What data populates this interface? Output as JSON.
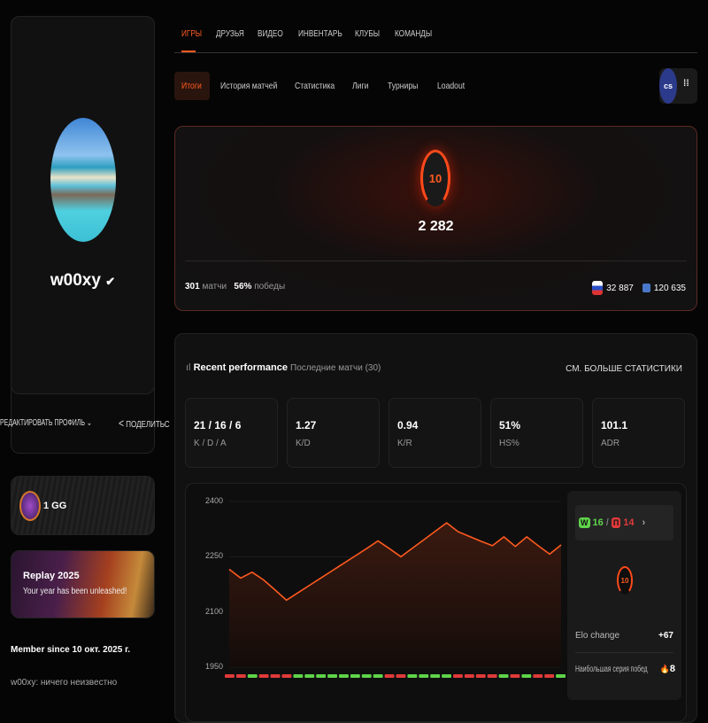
{
  "profile": {
    "username": "w00xy",
    "edit_label": "РЕДАКТИРОВАТЬ ПРОФИЛЬ",
    "share_label": "ПОДЕЛИТЬС",
    "member_since": "Member since 10 окт. 2025 г.",
    "bio": "w00xy: ничего неизвестно"
  },
  "gg_card": {
    "label": "1 GG"
  },
  "replay_card": {
    "title": "Replay 2025",
    "subtitle": "Your year has been unleashed!"
  },
  "nav": {
    "tabs": [
      {
        "label": "ИГРЫ",
        "active": true
      },
      {
        "label": "ДРУЗЬЯ"
      },
      {
        "label": "ВИДЕО"
      },
      {
        "label": "ИНВЕНТАРЬ"
      },
      {
        "label": "КЛУБЫ"
      },
      {
        "label": "КОМАНДЫ"
      }
    ],
    "subtabs": [
      {
        "label": "Итоги",
        "active": true
      },
      {
        "label": "История матчей"
      },
      {
        "label": "Статистика"
      },
      {
        "label": "Лиги"
      },
      {
        "label": "Турниры"
      },
      {
        "label": "Loadout"
      }
    ],
    "game_logo": "cs",
    "menu_icon": "more-icon"
  },
  "elo_card": {
    "level": "10",
    "elo": "2 282",
    "matches": "301",
    "matches_label": "матчи",
    "winrate": "56%",
    "winrate_label": "победы",
    "country_rank": "32 887",
    "region_rank": "120 635"
  },
  "performance": {
    "title": "Recent performance",
    "subtitle": "Последние матчи (30)",
    "more_link": "СМ. БОЛЬШЕ СТАТИСТИКИ",
    "stats": [
      {
        "value": "21 / 16 / 6",
        "label": "K / D / A"
      },
      {
        "value": "1.27",
        "label": "K/D"
      },
      {
        "value": "0.94",
        "label": "K/R"
      },
      {
        "value": "51%",
        "label": "HS%"
      },
      {
        "value": "101.1",
        "label": "ADR"
      }
    ]
  },
  "side_panel": {
    "wins_badge": "W",
    "wins": "16",
    "losses_badge": "П",
    "losses": "14",
    "level": "10",
    "elo_change_label": "Elo change",
    "elo_change": "+67",
    "streak_label": "Наибольшая серия побед",
    "streak": "8"
  },
  "colors": {
    "accent": "#ff5a1f",
    "win": "#5fd34a",
    "loss": "#e03a3a"
  },
  "chart_data": {
    "type": "line",
    "ylim": [
      1950,
      2400
    ],
    "yticks": [
      "2400",
      "2250",
      "2100",
      "1950"
    ],
    "values": [
      2216,
      2192,
      2208,
      2187,
      2160,
      2132,
      2152,
      2172,
      2192,
      2212,
      2232,
      2252,
      2272,
      2293,
      2272,
      2250,
      2273,
      2296,
      2319,
      2342,
      2318,
      2305,
      2292,
      2280,
      2304,
      2278,
      2304,
      2280,
      2257,
      2282
    ],
    "results": [
      "L",
      "L",
      "W",
      "L",
      "L",
      "L",
      "W",
      "W",
      "W",
      "W",
      "W",
      "W",
      "W",
      "W",
      "L",
      "L",
      "W",
      "W",
      "W",
      "W",
      "L",
      "L",
      "L",
      "L",
      "W",
      "L",
      "W",
      "L",
      "L",
      "W"
    ]
  }
}
